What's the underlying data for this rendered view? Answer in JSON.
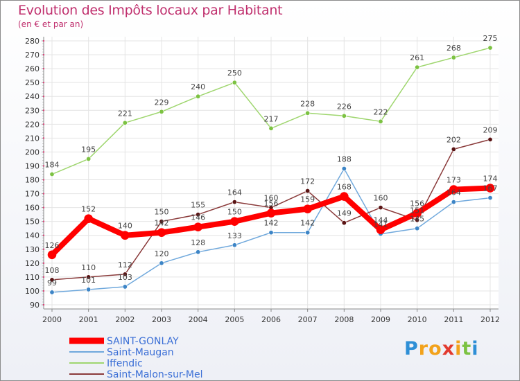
{
  "header": {
    "title": "Evolution des Impôts locaux par Habitant",
    "subtitle": "(en € et par an)"
  },
  "logo": {
    "text": "Proxiti",
    "letters": [
      "P",
      "r",
      "o",
      "x",
      "i",
      "t",
      "i"
    ],
    "colors": [
      "#2e8fd6",
      "#f2a21b",
      "#f2a21b",
      "#e23a2e",
      "#f2a21b",
      "#7cc242",
      "#2e8fd6"
    ]
  },
  "chart_data": {
    "type": "line",
    "title": "Evolution des Impôts locaux par Habitant",
    "subtitle": "(en € et par an)",
    "xlabel": "",
    "ylabel": "",
    "x": [
      "2000",
      "2001",
      "2002",
      "2003",
      "2004",
      "2005",
      "2006",
      "2007",
      "2008",
      "2009",
      "2010",
      "2011",
      "2012"
    ],
    "ylim": [
      90,
      280
    ],
    "yticks": [
      90,
      100,
      110,
      120,
      130,
      140,
      150,
      160,
      170,
      180,
      190,
      200,
      210,
      220,
      230,
      240,
      250,
      260,
      270,
      280
    ],
    "grid": true,
    "legend_position": "bottom-left",
    "series": [
      {
        "name": "SAINT-GONLAY",
        "color": "#ff0000",
        "marker": "#ff0000",
        "width": 8,
        "values": [
          126,
          152,
          140,
          142,
          146,
          150,
          156,
          159,
          168,
          144,
          156,
          173,
          174
        ],
        "labels": [
          "126",
          "152",
          "140",
          "142",
          "146",
          "150",
          "156",
          "159",
          "168",
          "144",
          "156",
          "173",
          "174"
        ]
      },
      {
        "name": "Saint-Maugan",
        "color": "#6fa8dc",
        "marker": "#3d85c6",
        "width": 1.5,
        "values": [
          99,
          101,
          103,
          120,
          128,
          133,
          142,
          142,
          188,
          141,
          145,
          164,
          167
        ],
        "labels": [
          "99",
          "101",
          "103",
          "120",
          "128",
          "133",
          "142",
          "142",
          "188",
          "141",
          "145",
          "164",
          "167"
        ]
      },
      {
        "name": "Iffendic",
        "color": "#9fd66f",
        "marker": "#7cc242",
        "width": 1.5,
        "values": [
          184,
          195,
          221,
          229,
          240,
          250,
          217,
          228,
          226,
          222,
          261,
          268,
          275
        ],
        "labels": [
          "184",
          "195",
          "221",
          "229",
          "240",
          "250",
          "217",
          "228",
          "226",
          "222",
          "261",
          "268",
          "275"
        ]
      },
      {
        "name": "Saint-Malon-sur-Mel",
        "color": "#8a3a3a",
        "marker": "#5a1414",
        "width": 1.5,
        "values": [
          108,
          110,
          112,
          150,
          155,
          164,
          160,
          172,
          149,
          160,
          151,
          202,
          209
        ],
        "labels": [
          "108",
          "110",
          "112",
          "150",
          "155",
          "164",
          "160",
          "172",
          "149",
          "160",
          "151",
          "202",
          "209"
        ]
      }
    ]
  }
}
